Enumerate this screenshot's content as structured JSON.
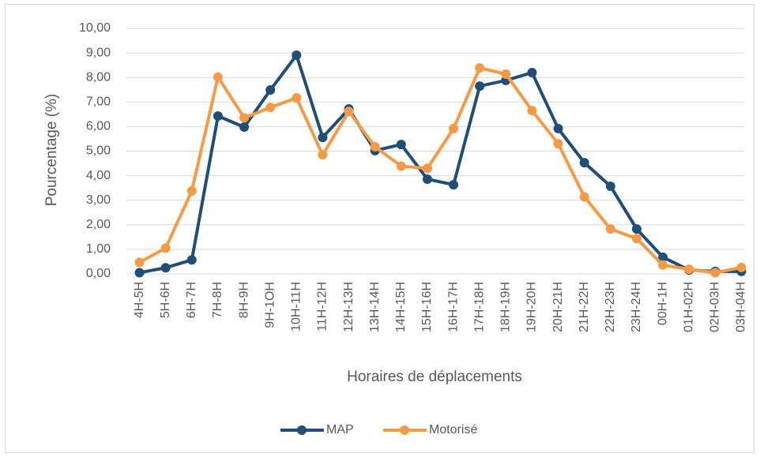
{
  "chart_data": {
    "type": "line",
    "x_label": "Horaires de déplacements",
    "y_label": "Pourcentage (%)",
    "categories": [
      "4H-5H",
      "5H-6H",
      "6H-7H",
      "7H-8H",
      "8H-9H",
      "9H-1OH",
      "10H-11H",
      "11H-12H",
      "12H-13H",
      "13H-14H",
      "14H-15H",
      "15H-16H",
      "16H-17H",
      "17H-18H",
      "18H-19H",
      "19H-20H",
      "20H-21H",
      "21H-22H",
      "22H-23H",
      "23H-24H",
      "00H-1H",
      "01H-02H",
      "02H-03H",
      "03H-04H"
    ],
    "series": [
      {
        "name": "MAP",
        "color": "#1f4e79",
        "values": [
          0.05,
          0.25,
          0.57,
          6.43,
          5.98,
          7.49,
          8.91,
          5.56,
          6.72,
          5.02,
          5.27,
          3.86,
          3.63,
          7.65,
          7.88,
          8.2,
          5.92,
          4.53,
          3.57,
          1.83,
          0.68,
          0.16,
          0.1,
          0.1
        ]
      },
      {
        "name": "Motorisé",
        "color": "#f59a45",
        "values": [
          0.47,
          1.05,
          3.38,
          8.02,
          6.36,
          6.78,
          7.17,
          4.85,
          6.62,
          5.18,
          4.39,
          4.3,
          5.92,
          8.39,
          8.14,
          6.65,
          5.3,
          3.14,
          1.83,
          1.44,
          0.36,
          0.19,
          0.05,
          0.26
        ]
      }
    ],
    "ylim": [
      0,
      10
    ],
    "yticks": [
      {
        "value": 0,
        "label": "0,00"
      },
      {
        "value": 1,
        "label": "1,00"
      },
      {
        "value": 2,
        "label": "2,00"
      },
      {
        "value": 3,
        "label": "3,00"
      },
      {
        "value": 4,
        "label": "4,00"
      },
      {
        "value": 5,
        "label": "5,00"
      },
      {
        "value": 6,
        "label": "6,00"
      },
      {
        "value": 7,
        "label": "7,00"
      },
      {
        "value": 8,
        "label": "8,00"
      },
      {
        "value": 9,
        "label": "9,00"
      },
      {
        "value": 10,
        "label": "10,00"
      }
    ],
    "grid": true,
    "legend": "bottom"
  }
}
